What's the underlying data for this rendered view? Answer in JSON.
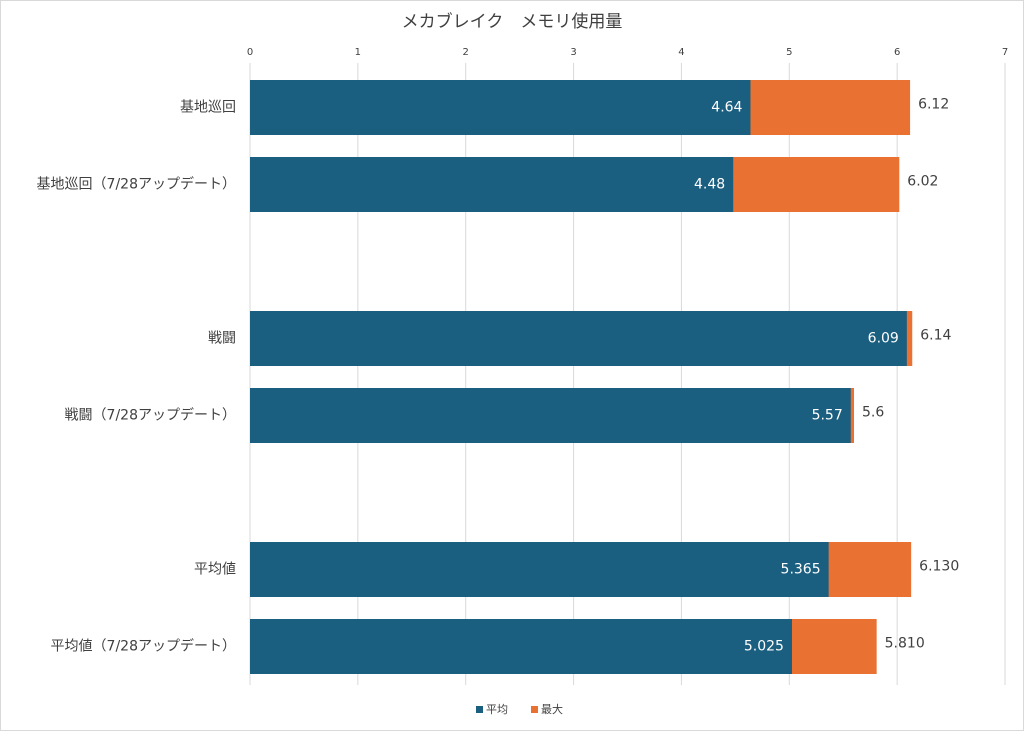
{
  "chart_data": {
    "type": "bar",
    "orientation": "horizontal",
    "title": "メカブレイク　メモリ使用量",
    "categories": [
      "基地巡回",
      "基地巡回（7/28アップデート）",
      null,
      "戦闘",
      "戦闘（7/28アップデート）",
      null,
      "平均値",
      "平均値（7/28アップデート）"
    ],
    "series": [
      {
        "name": "平均",
        "color": "#1a5e80",
        "values": [
          4.64,
          4.48,
          null,
          6.09,
          5.57,
          null,
          5.365,
          5.025
        ],
        "value_labels": [
          "4.64",
          "4.48",
          null,
          "6.09",
          "5.57",
          null,
          "5.365",
          "5.025"
        ]
      },
      {
        "name": "最大",
        "color": "#e97132",
        "values": [
          6.12,
          6.02,
          null,
          6.14,
          5.6,
          null,
          6.13,
          5.81
        ],
        "value_labels": [
          "6.12",
          "6.02",
          null,
          "6.14",
          "5.6",
          null,
          "6.130",
          "5.810"
        ]
      }
    ],
    "xlim": [
      0,
      7
    ],
    "xticks": [
      0,
      1,
      2,
      3,
      4,
      5,
      6,
      7
    ],
    "grid": true,
    "legend": "bottom"
  }
}
